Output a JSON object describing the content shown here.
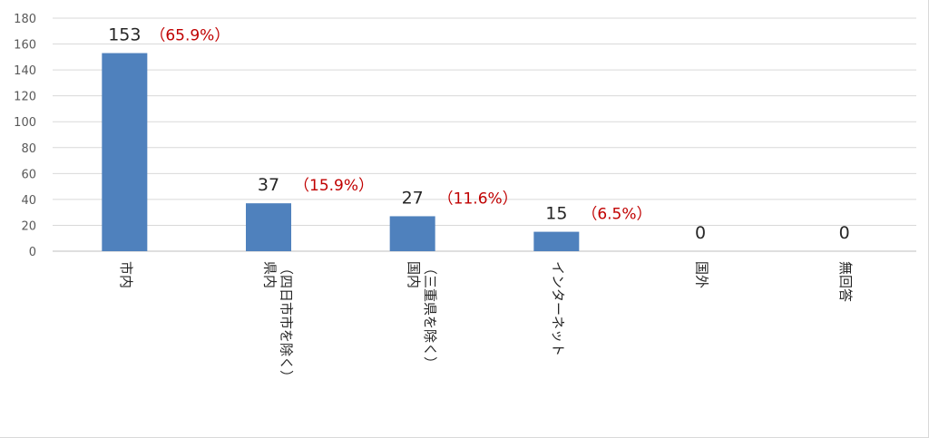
{
  "colors": {
    "bar": "#4f81bd",
    "percent": "#c00000",
    "grid": "#d9d9d9",
    "axis": "#bfbfbf"
  },
  "chart_data": {
    "type": "bar",
    "categories": [
      "市内",
      "県内（四日市市を除く）",
      "国内（三重県を除く）",
      "インターネット",
      "国外",
      "無回答"
    ],
    "category_label_lines": [
      [
        "市内"
      ],
      [
        "県内",
        "（四日市市を除く）"
      ],
      [
        "国内",
        "（三重県を除く）"
      ],
      [
        "インターネット"
      ],
      [
        "国外"
      ],
      [
        "無回答"
      ]
    ],
    "values": [
      153,
      37,
      27,
      15,
      0,
      0
    ],
    "value_labels": [
      "153",
      "37",
      "27",
      "15",
      "0",
      "0"
    ],
    "percent_labels": [
      "（65.9%）",
      "（15.9%）",
      "（11.6%）",
      "（6.5%）",
      "",
      ""
    ],
    "ylim": [
      0,
      180
    ],
    "yticks": [
      0,
      20,
      40,
      60,
      80,
      100,
      120,
      140,
      160,
      180
    ],
    "grid": true,
    "legend": "none",
    "title": "",
    "xlabel": "",
    "ylabel": ""
  }
}
